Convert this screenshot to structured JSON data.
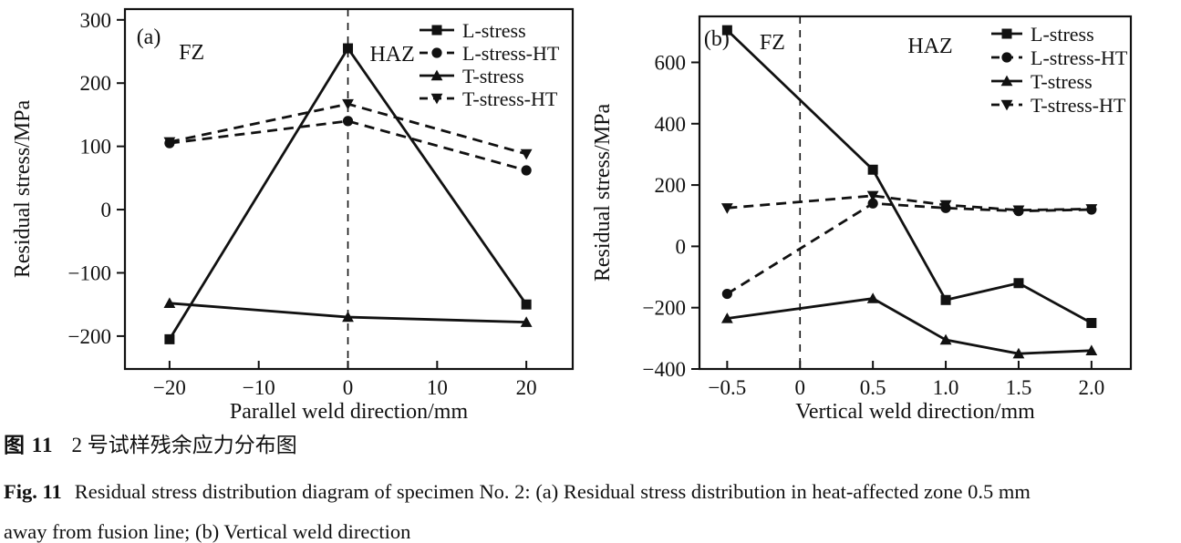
{
  "caption": {
    "zh_label": "图 11",
    "zh_text": "2 号试样残余应力分布图",
    "en_label": "Fig. 11",
    "en_line1": "Residual stress distribution diagram of specimen No. 2: (a) Residual stress distribution in heat-affected zone 0.5 mm",
    "en_line2": "away from fusion line; (b) Vertical weld direction"
  },
  "colors": {
    "line": "#111111",
    "text": "#111111",
    "background": "#ffffff"
  },
  "chart_data": [
    {
      "type": "line",
      "panel": "(a)",
      "xlabel": "Parallel weld direction/mm",
      "ylabel": "Residual stress/MPa",
      "xlim": [
        -25,
        25.2
      ],
      "ylim": [
        -252,
        317
      ],
      "grid": false,
      "legend_position": "top-right",
      "vline_x": 0,
      "xticks": [
        {
          "v": -20,
          "label": "−20"
        },
        {
          "v": -10,
          "label": "−10"
        },
        {
          "v": 0,
          "label": "0"
        },
        {
          "v": 10,
          "label": "10"
        },
        {
          "v": 20,
          "label": "20"
        }
      ],
      "yticks": [
        {
          "v": 300,
          "label": "300"
        },
        {
          "v": 200,
          "label": "200"
        },
        {
          "v": 100,
          "label": "100"
        },
        {
          "v": 0,
          "label": "0"
        },
        {
          "v": -100,
          "label": "−100"
        },
        {
          "v": -200,
          "label": "−200"
        }
      ],
      "annotations": [
        {
          "text": "(a)",
          "fx": 0.053,
          "fy": 0.076
        },
        {
          "text": "FZ",
          "fx": 0.149,
          "fy": 0.119
        },
        {
          "text": "HAZ",
          "fx": 0.597,
          "fy": 0.124
        }
      ],
      "x": [
        -20,
        0,
        20
      ],
      "series": [
        {
          "name": "L-stress",
          "marker": "square",
          "dashed": false,
          "values": [
            -205,
            255,
            -150
          ]
        },
        {
          "name": "L-stress-HT",
          "marker": "circle",
          "dashed": true,
          "values": [
            105,
            140,
            62
          ]
        },
        {
          "name": "T-stress",
          "marker": "triangle-up",
          "dashed": false,
          "values": [
            -148,
            -170,
            -178
          ]
        },
        {
          "name": "T-stress-HT",
          "marker": "triangle-down",
          "dashed": true,
          "values": [
            107,
            167,
            88
          ]
        }
      ]
    },
    {
      "type": "line",
      "panel": "(b)",
      "xlabel": "Vertical weld direction/mm",
      "ylabel": "Residual stress/MPa",
      "xlim": [
        -0.69,
        2.27
      ],
      "ylim": [
        -400,
        750
      ],
      "grid": false,
      "legend_position": "top-right",
      "vline_x": 0,
      "xticks": [
        {
          "v": -0.5,
          "label": "−0.5"
        },
        {
          "v": 0,
          "label": "0"
        },
        {
          "v": 0.5,
          "label": "0.5"
        },
        {
          "v": 1.0,
          "label": "1.0"
        },
        {
          "v": 1.5,
          "label": "1.5"
        },
        {
          "v": 2.0,
          "label": "2.0"
        }
      ],
      "yticks": [
        {
          "v": 600,
          "label": "600"
        },
        {
          "v": 400,
          "label": "400"
        },
        {
          "v": 200,
          "label": "200"
        },
        {
          "v": 0,
          "label": "0"
        },
        {
          "v": -200,
          "label": "−200"
        },
        {
          "v": -400,
          "label": "−400"
        }
      ],
      "annotations": [
        {
          "text": "(b)",
          "fx": 0.04,
          "fy": 0.062
        },
        {
          "text": "FZ",
          "fx": 0.169,
          "fy": 0.072
        },
        {
          "text": "HAZ",
          "fx": 0.535,
          "fy": 0.083
        }
      ],
      "x": [
        -0.5,
        0.5,
        1.0,
        1.5,
        2.0
      ],
      "series": [
        {
          "name": "L-stress",
          "marker": "square",
          "dashed": false,
          "values": [
            705,
            250,
            -175,
            -120,
            -250
          ]
        },
        {
          "name": "L-stress-HT",
          "marker": "circle",
          "dashed": true,
          "values": [
            -155,
            140,
            125,
            115,
            120
          ]
        },
        {
          "name": "T-stress",
          "marker": "triangle-up",
          "dashed": false,
          "values": [
            -235,
            -170,
            -305,
            -350,
            -340
          ]
        },
        {
          "name": "T-stress-HT",
          "marker": "triangle-down",
          "dashed": true,
          "values": [
            125,
            165,
            135,
            118,
            122
          ]
        }
      ]
    }
  ]
}
